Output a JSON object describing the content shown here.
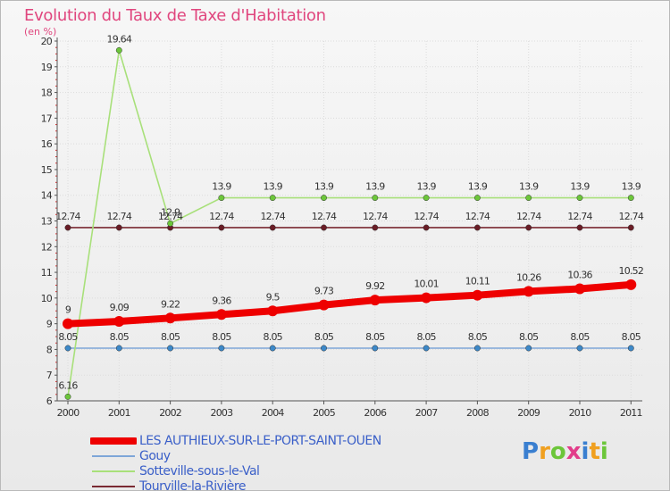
{
  "title": "Evolution du Taux de Taxe d'Habitation",
  "subtitle": "(en %)",
  "logo": "Proxiti",
  "chart_data": {
    "type": "line",
    "x": [
      "2000",
      "2001",
      "2002",
      "2003",
      "2004",
      "2005",
      "2006",
      "2007",
      "2008",
      "2009",
      "2010",
      "2011"
    ],
    "ylim": [
      6,
      20
    ],
    "yticks": [
      6,
      7,
      8,
      9,
      10,
      11,
      12,
      13,
      14,
      15,
      16,
      17,
      18,
      19,
      20
    ],
    "series": [
      {
        "name": "LES AUTHIEUX-SUR-LE-PORT-SAINT-OUEN",
        "color": "#ee0000",
        "marker_color": "#ee0000",
        "values": [
          9,
          9.09,
          9.22,
          9.36,
          9.5,
          9.73,
          9.92,
          10.01,
          10.11,
          10.26,
          10.36,
          10.52
        ],
        "labels": [
          "9",
          "9.09",
          "9.22",
          "9.36",
          "9.5",
          "9.73",
          "9.92",
          "10.01",
          "10.11",
          "10.26",
          "10.36",
          "10.52"
        ]
      },
      {
        "name": "Gouy",
        "color": "#7ea6d8",
        "marker_color": "#3c88c8",
        "values": [
          8.05,
          8.05,
          8.05,
          8.05,
          8.05,
          8.05,
          8.05,
          8.05,
          8.05,
          8.05,
          8.05,
          8.05
        ],
        "labels": [
          "8.05",
          "8.05",
          "8.05",
          "8.05",
          "8.05",
          "8.05",
          "8.05",
          "8.05",
          "8.05",
          "8.05",
          "8.05",
          "8.05"
        ]
      },
      {
        "name": "Sotteville-sous-le-Val",
        "color": "#a8e07a",
        "marker_color": "#6cc63a",
        "values": [
          6.16,
          19.64,
          12.9,
          13.9,
          13.9,
          13.9,
          13.9,
          13.9,
          13.9,
          13.9,
          13.9,
          13.9
        ],
        "labels": [
          "6.16",
          "19.64",
          "12.9",
          "13.9",
          "13.9",
          "13.9",
          "13.9",
          "13.9",
          "13.9",
          "13.9",
          "13.9",
          "13.9"
        ]
      },
      {
        "name": "Tourville-la-Rivière",
        "color": "#7a2a32",
        "marker_color": "#6a1d26",
        "values": [
          12.74,
          12.74,
          12.74,
          12.74,
          12.74,
          12.74,
          12.74,
          12.74,
          12.74,
          12.74,
          12.74,
          12.74
        ],
        "labels": [
          "12.74",
          "12.74",
          "12.74",
          "12.74",
          "12.74",
          "12.74",
          "12.74",
          "12.74",
          "12.74",
          "12.74",
          "12.74",
          "12.74"
        ]
      }
    ],
    "legend_position": "bottom-left"
  }
}
